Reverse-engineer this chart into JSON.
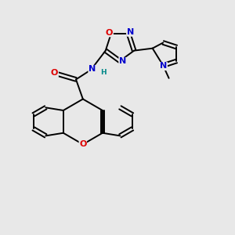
{
  "background_color": "#e8e8e8",
  "atom_colors": {
    "C": "#000000",
    "N": "#0000cc",
    "O": "#dd0000",
    "H": "#008888"
  },
  "figsize": [
    3.0,
    3.0
  ],
  "dpi": 100
}
